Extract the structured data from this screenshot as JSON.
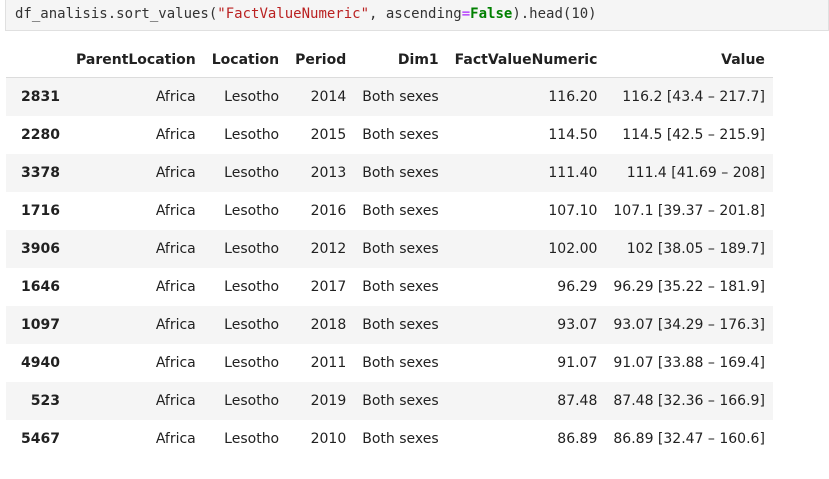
{
  "code": {
    "prefix": "df_analisis.sort_values(",
    "arg_str": "\"FactValueNumeric\"",
    "mid": ", ascending",
    "eq": "=",
    "kw": "False",
    "suffix": ").head(10)"
  },
  "table": {
    "columns": [
      "",
      "ParentLocation",
      "Location",
      "Period",
      "Dim1",
      "FactValueNumeric",
      "Value"
    ],
    "rows": [
      {
        "index": "2831",
        "parent": "Africa",
        "location": "Lesotho",
        "period": "2014",
        "dim1": "Both sexes",
        "fact": "116.20",
        "value": "116.2 [43.4 – 217.7]"
      },
      {
        "index": "2280",
        "parent": "Africa",
        "location": "Lesotho",
        "period": "2015",
        "dim1": "Both sexes",
        "fact": "114.50",
        "value": "114.5 [42.5 – 215.9]"
      },
      {
        "index": "3378",
        "parent": "Africa",
        "location": "Lesotho",
        "period": "2013",
        "dim1": "Both sexes",
        "fact": "111.40",
        "value": "111.4 [41.69 – 208]"
      },
      {
        "index": "1716",
        "parent": "Africa",
        "location": "Lesotho",
        "period": "2016",
        "dim1": "Both sexes",
        "fact": "107.10",
        "value": "107.1 [39.37 – 201.8]"
      },
      {
        "index": "3906",
        "parent": "Africa",
        "location": "Lesotho",
        "period": "2012",
        "dim1": "Both sexes",
        "fact": "102.00",
        "value": "102 [38.05 – 189.7]"
      },
      {
        "index": "1646",
        "parent": "Africa",
        "location": "Lesotho",
        "period": "2017",
        "dim1": "Both sexes",
        "fact": "96.29",
        "value": "96.29 [35.22 – 181.9]"
      },
      {
        "index": "1097",
        "parent": "Africa",
        "location": "Lesotho",
        "period": "2018",
        "dim1": "Both sexes",
        "fact": "93.07",
        "value": "93.07 [34.29 – 176.3]"
      },
      {
        "index": "4940",
        "parent": "Africa",
        "location": "Lesotho",
        "period": "2011",
        "dim1": "Both sexes",
        "fact": "91.07",
        "value": "91.07 [33.88 – 169.4]"
      },
      {
        "index": "523",
        "parent": "Africa",
        "location": "Lesotho",
        "period": "2019",
        "dim1": "Both sexes",
        "fact": "87.48",
        "value": "87.48 [32.36 – 166.9]"
      },
      {
        "index": "5467",
        "parent": "Africa",
        "location": "Lesotho",
        "period": "2010",
        "dim1": "Both sexes",
        "fact": "86.89",
        "value": "86.89 [32.47 – 160.6]"
      }
    ]
  }
}
